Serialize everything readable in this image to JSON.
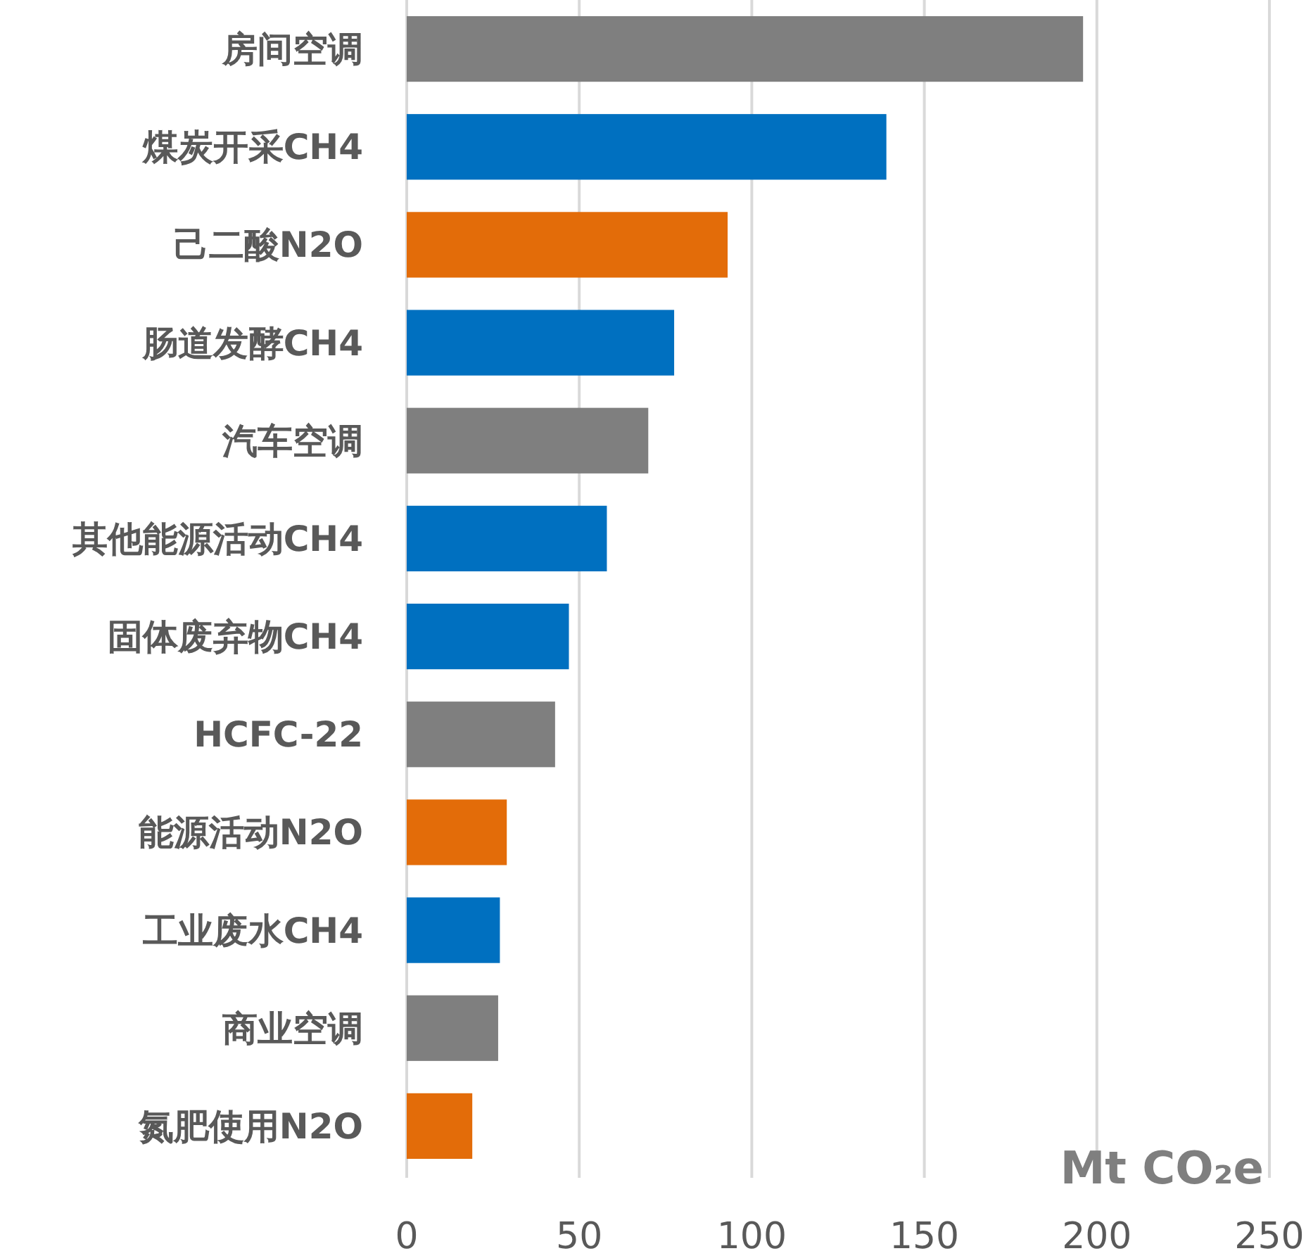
{
  "chart_data": {
    "type": "bar",
    "orientation": "horizontal",
    "categories": [
      "房间空调",
      "煤炭开采CH4",
      "己二酸N2O",
      "肠道发酵CH4",
      "汽车空调",
      "其他能源活动CH4",
      "固体废弃物CH4",
      "HCFC-22",
      "能源活动N2O",
      "工业废水CH4",
      "商业空调",
      "氮肥使用N2O"
    ],
    "values": [
      196,
      139,
      93,
      77.5,
      70,
      58,
      47,
      43,
      29,
      27,
      26.5,
      19
    ],
    "colors": [
      "#7f7f7f",
      "#0070c0",
      "#e36c09",
      "#0070c0",
      "#7f7f7f",
      "#0070c0",
      "#0070c0",
      "#7f7f7f",
      "#e36c09",
      "#0070c0",
      "#7f7f7f",
      "#e36c09"
    ],
    "xlim": [
      0,
      250
    ],
    "xticks": [
      0,
      50,
      100,
      150,
      200,
      250
    ],
    "grid": "x",
    "xlabel": "Mt CO₂e"
  }
}
